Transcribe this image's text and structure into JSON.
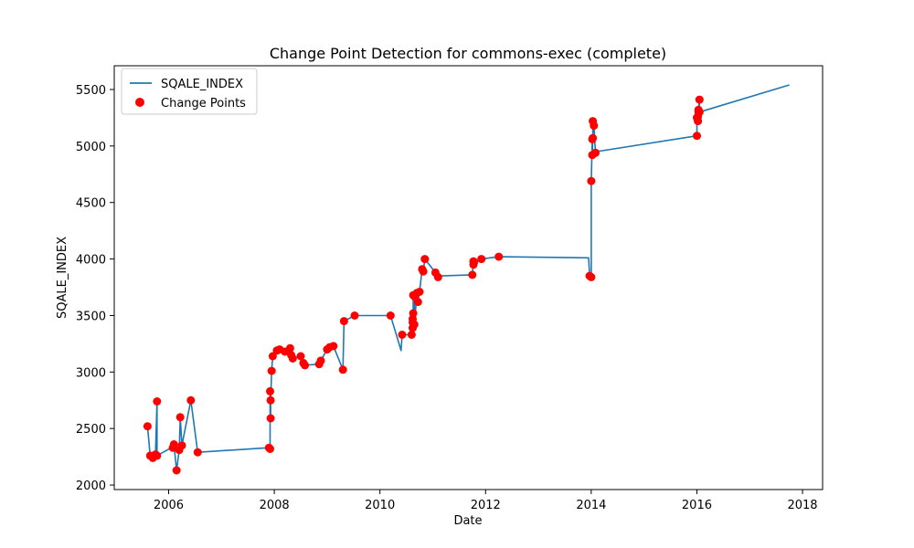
{
  "chart_data": {
    "type": "line",
    "title": "Change Point Detection for commons-exec (complete)",
    "xlabel": "Date",
    "ylabel": "SQALE_INDEX",
    "xlim": [
      2004.97,
      2018.38
    ],
    "ylim": [
      1960,
      5710
    ],
    "x_ticks": [
      2006,
      2008,
      2010,
      2012,
      2014,
      2016,
      2018
    ],
    "y_ticks": [
      2000,
      2500,
      3000,
      3500,
      4000,
      4500,
      5000,
      5500
    ],
    "grid": false,
    "legend_placement": "upper-left",
    "colors": {
      "line": "#1f77b4",
      "points": "#ff0000"
    },
    "series": [
      {
        "name": "SQALE_INDEX",
        "kind": "line",
        "x": [
          2005.6,
          2005.65,
          2005.7,
          2005.75,
          2005.78,
          2005.78,
          2006.05,
          2006.1,
          2006.15,
          2006.2,
          2006.22,
          2006.25,
          2006.42,
          2006.55,
          2007.9,
          2007.92,
          2007.92,
          2007.93,
          2007.93,
          2007.95,
          2007.97,
          2008.05,
          2008.1,
          2008.2,
          2008.3,
          2008.32,
          2008.35,
          2008.5,
          2008.55,
          2008.58,
          2008.85,
          2008.88,
          2009.0,
          2009.05,
          2009.12,
          2009.3,
          2009.32,
          2009.52,
          2010.2,
          2010.4,
          2010.42,
          2010.6,
          2010.62,
          2010.62,
          2010.62,
          2010.63,
          2010.63,
          2010.65,
          2010.65,
          2010.7,
          2010.72,
          2010.75,
          2010.8,
          2010.82,
          2010.85,
          2011.05,
          2011.1,
          2011.15,
          2011.75,
          2011.77,
          2011.77,
          2011.78,
          2011.92,
          2012.25,
          2013.95,
          2013.97,
          2014.0,
          2014.0,
          2014.02,
          2014.02,
          2014.03,
          2014.03,
          2014.05,
          2014.08,
          2014.1,
          2016.0,
          2016.0,
          2016.02,
          2016.02,
          2016.03,
          2016.03,
          2016.05,
          2016.05,
          2017.75
        ],
        "y": [
          2520,
          2260,
          2240,
          2270,
          2740,
          2260,
          2330,
          2360,
          2130,
          2310,
          2600,
          2350,
          2750,
          2290,
          2330,
          2320,
          2830,
          2590,
          2750,
          3010,
          3140,
          3190,
          3200,
          3180,
          3210,
          3150,
          3120,
          3140,
          3080,
          3060,
          3070,
          3100,
          3200,
          3220,
          3230,
          3020,
          3450,
          3500,
          3500,
          3190,
          3330,
          3330,
          3470,
          3390,
          3440,
          3520,
          3680,
          3670,
          3420,
          3700,
          3620,
          3710,
          3910,
          3890,
          4000,
          3880,
          3840,
          3850,
          3860,
          3980,
          3950,
          3970,
          4000,
          4020,
          4010,
          3850,
          3840,
          4690,
          5060,
          4920,
          5070,
          5220,
          5180,
          4940,
          4950,
          5090,
          5250,
          5220,
          5260,
          5300,
          5320,
          5410,
          5300,
          5540
        ]
      },
      {
        "name": "Change Points",
        "kind": "scatter",
        "x": [
          2005.6,
          2005.65,
          2005.7,
          2005.75,
          2005.78,
          2005.78,
          2006.08,
          2006.1,
          2006.15,
          2006.2,
          2006.22,
          2006.25,
          2006.42,
          2006.55,
          2007.9,
          2007.92,
          2007.92,
          2007.93,
          2007.93,
          2007.95,
          2007.97,
          2008.05,
          2008.1,
          2008.2,
          2008.3,
          2008.32,
          2008.35,
          2008.5,
          2008.55,
          2008.58,
          2008.85,
          2008.88,
          2009.0,
          2009.05,
          2009.12,
          2009.3,
          2009.32,
          2009.52,
          2010.2,
          2010.42,
          2010.6,
          2010.62,
          2010.62,
          2010.62,
          2010.63,
          2010.63,
          2010.65,
          2010.65,
          2010.7,
          2010.72,
          2010.75,
          2010.8,
          2010.82,
          2010.85,
          2011.05,
          2011.1,
          2011.75,
          2011.77,
          2011.77,
          2011.78,
          2011.92,
          2012.25,
          2013.97,
          2014.0,
          2014.0,
          2014.02,
          2014.02,
          2014.03,
          2014.03,
          2014.05,
          2014.08,
          2016.0,
          2016.0,
          2016.02,
          2016.02,
          2016.03,
          2016.03,
          2016.05,
          2016.05
        ],
        "y": [
          2520,
          2260,
          2240,
          2270,
          2740,
          2260,
          2330,
          2360,
          2130,
          2310,
          2600,
          2350,
          2750,
          2290,
          2330,
          2320,
          2830,
          2590,
          2750,
          3010,
          3140,
          3190,
          3200,
          3180,
          3210,
          3150,
          3120,
          3140,
          3080,
          3060,
          3070,
          3100,
          3200,
          3220,
          3230,
          3020,
          3450,
          3500,
          3500,
          3330,
          3330,
          3470,
          3390,
          3440,
          3520,
          3680,
          3670,
          3420,
          3700,
          3620,
          3710,
          3910,
          3890,
          4000,
          3880,
          3840,
          3860,
          3980,
          3950,
          3970,
          4000,
          4020,
          3850,
          3840,
          4690,
          5060,
          4920,
          5070,
          5220,
          5180,
          4940,
          5090,
          5250,
          5220,
          5260,
          5300,
          5320,
          5410,
          5300
        ]
      }
    ]
  }
}
